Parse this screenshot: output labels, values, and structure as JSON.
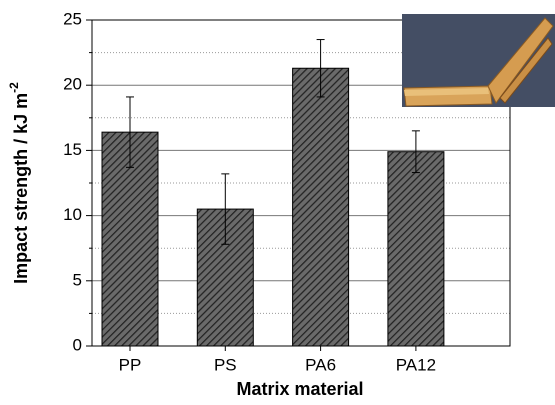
{
  "chart_data": {
    "type": "bar",
    "xlabel": "Matrix material",
    "ylabel": "Impact strength / kJ m",
    "ylabel_superscript": "-2",
    "categories": [
      "PP",
      "PS",
      "PA6",
      "PA12"
    ],
    "values": [
      16.4,
      10.5,
      21.3,
      14.9
    ],
    "errors": [
      2.7,
      2.7,
      2.2,
      1.6
    ],
    "color": "#555555",
    "hatch": true,
    "ylim": [
      0,
      25
    ],
    "yticks": [
      0,
      5,
      10,
      15,
      20,
      25
    ],
    "grid": true,
    "minor_grid": true
  }
}
